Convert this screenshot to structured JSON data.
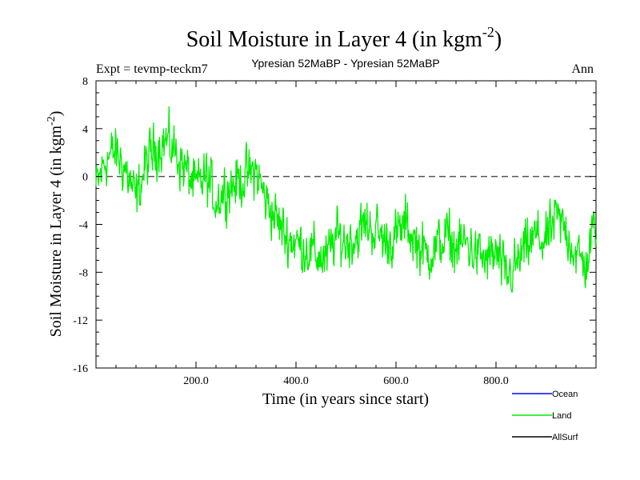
{
  "chart_data": {
    "type": "line",
    "title": "Soil Moisture in Layer 4 (in kgm",
    "title_sup": "-2",
    "title_close": ")",
    "expt_label": "Expt = tevmp-teckm7",
    "subtitle": "Ypresian  52MaBP - Ypresian  52MaBP",
    "season": "Ann",
    "xlabel": "Time (in years since start)",
    "ylabel": "Soil Moisture in Layer 4 (in kgm",
    "ylabel_sup": "-2",
    "ylabel_close": ")",
    "xlim": [
      0,
      1000
    ],
    "ylim": [
      -16,
      8
    ],
    "x_ticks": [
      200,
      400,
      600,
      800
    ],
    "x_tick_labels": [
      "200.0",
      "400.0",
      "600.0",
      "800.0"
    ],
    "y_ticks": [
      8,
      4,
      0,
      -4,
      -8,
      -12,
      -16
    ],
    "y_tick_labels": [
      "8",
      "4",
      "0",
      "-4",
      "-8",
      "-12",
      "-16"
    ],
    "zero_line": 0,
    "legend": [
      {
        "name": "Ocean",
        "color": "#0000ff"
      },
      {
        "name": "Land",
        "color": "#00ee00"
      },
      {
        "name": "AllSurf",
        "color": "#000000"
      }
    ],
    "series": [
      {
        "name": "Land",
        "color": "#00ee00",
        "x": [
          0,
          20,
          40,
          60,
          80,
          100,
          120,
          140,
          160,
          180,
          200,
          220,
          240,
          260,
          280,
          300,
          320,
          340,
          360,
          380,
          400,
          420,
          440,
          460,
          480,
          500,
          520,
          540,
          560,
          580,
          600,
          620,
          640,
          660,
          680,
          700,
          720,
          740,
          760,
          780,
          800,
          820,
          840,
          860,
          880,
          900,
          920,
          940,
          960,
          980,
          1000
        ],
        "values": [
          -1.0,
          1.5,
          2.0,
          0.5,
          -2.0,
          1.0,
          2.5,
          3.0,
          2.0,
          0.5,
          -1.0,
          0.0,
          -2.0,
          -1.0,
          -0.5,
          0.0,
          0.5,
          -2.0,
          -3.5,
          -5.0,
          -5.5,
          -6.0,
          -6.5,
          -7.0,
          -5.0,
          -5.5,
          -5.0,
          -4.0,
          -4.5,
          -5.5,
          -5.0,
          -4.0,
          -5.5,
          -6.5,
          -6.0,
          -5.0,
          -6.0,
          -5.5,
          -6.5,
          -7.0,
          -6.5,
          -8.5,
          -7.5,
          -6.0,
          -5.0,
          -5.5,
          -3.5,
          -4.5,
          -6.5,
          -7.5,
          -3.5
        ]
      }
    ]
  }
}
